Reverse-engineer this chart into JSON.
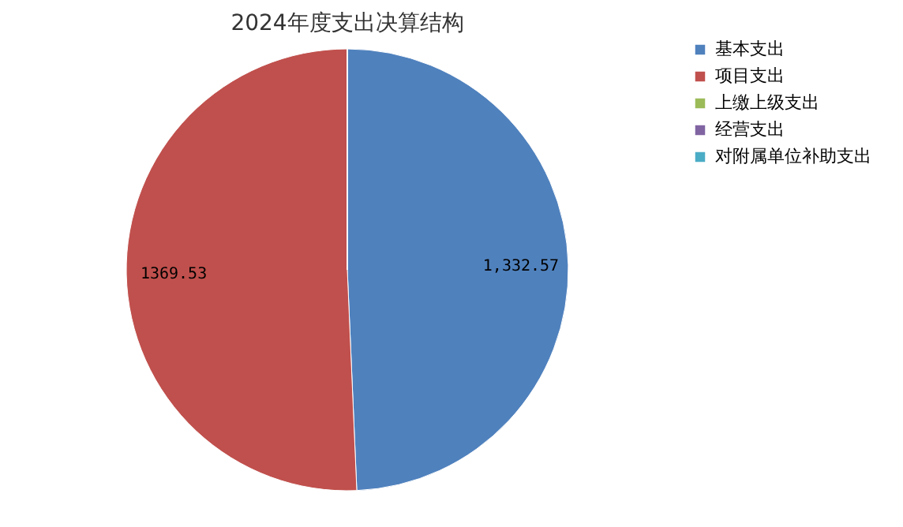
{
  "chart_data": {
    "type": "pie",
    "title": "2024年度支出决算结构",
    "categories": [
      "基本支出",
      "项目支出",
      "上缴上级支出",
      "经营支出",
      "对附属单位补助支出"
    ],
    "values": [
      1332.57,
      1369.53,
      0,
      0,
      0
    ],
    "value_labels": [
      "1,332.57",
      "1369.53",
      null,
      null,
      null
    ],
    "colors": [
      "#4f81bd",
      "#c0504d",
      "#9bbb59",
      "#8064a2",
      "#4bacc6"
    ],
    "legend": "right"
  }
}
